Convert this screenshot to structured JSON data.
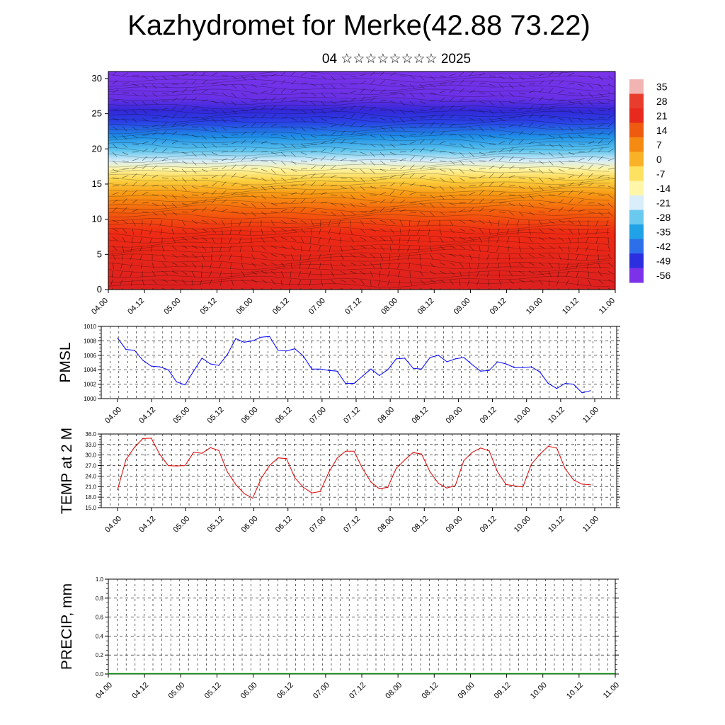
{
  "header": {
    "title": "Kazhydromet for Merke(42.88 73.22)",
    "subtitle": "04 ☆☆☆☆☆☆☆☆ 2025"
  },
  "chart_data": [
    {
      "type": "heatmap",
      "name": "temperature-height-section",
      "x_ticks": [
        "04.00",
        "04.12",
        "05.00",
        "05.12",
        "06.00",
        "06.12",
        "07.00",
        "07.12",
        "08.00",
        "08.12",
        "09.00",
        "09.12",
        "10.00",
        "10.12",
        "11.00"
      ],
      "y_ticks": [
        "0",
        "5",
        "10",
        "15",
        "20",
        "25",
        "30"
      ],
      "ylim": [
        0,
        31
      ],
      "colorbar_labels": [
        "35",
        "28",
        "21",
        "14",
        "7",
        "0",
        "-7",
        "-14",
        "-21",
        "-28",
        "-35",
        "-42",
        "-49",
        "-56"
      ],
      "colorbar_colors": [
        "#f2b3b3",
        "#e83c2c",
        "#e82a1e",
        "#ee5b10",
        "#f48a12",
        "#f9b227",
        "#fde262",
        "#fff6a8",
        "#d9eefa",
        "#6ac9ee",
        "#1fa3e6",
        "#2d6fe8",
        "#2b2fe0",
        "#7b32e8"
      ],
      "wind_barbs": true
    },
    {
      "type": "line",
      "name": "PMSL",
      "ylabel": "PMSL",
      "ylim": [
        1000,
        1010
      ],
      "y_ticks": [
        "1000",
        "1002",
        "1004",
        "1006",
        "1008",
        "1010"
      ],
      "x_ticks": [
        "04.00",
        "04.12",
        "05.00",
        "05.12",
        "06.00",
        "06.12",
        "07.00",
        "07.12",
        "08.00",
        "08.12",
        "09.00",
        "09.12",
        "10.00",
        "10.12",
        "11.00"
      ],
      "color": "#0000ff",
      "series": [
        {
          "values": [
            1008.4,
            1006.8,
            1006.7,
            1005.3,
            1004.5,
            1004.4,
            1004.0,
            1002.3,
            1001.9,
            1003.8,
            1005.6,
            1004.8,
            1004.6,
            1006.1,
            1008.3,
            1007.8,
            1008.0,
            1008.5,
            1008.6,
            1006.7,
            1006.6,
            1006.9,
            1005.9,
            1004.1,
            1004.1,
            1003.9,
            1003.8,
            1002.1,
            1002.1,
            1003.1,
            1004.1,
            1003.2,
            1004.0,
            1005.5,
            1005.6,
            1004.2,
            1004.1,
            1005.7,
            1006.0,
            1005.1,
            1005.5,
            1005.7,
            1004.7,
            1003.8,
            1003.9,
            1005.1,
            1004.8,
            1004.3,
            1004.3,
            1004.4,
            1003.7,
            1002.1,
            1001.4,
            1002.1,
            1002.0,
            1000.8,
            1001.1
          ]
        }
      ]
    },
    {
      "type": "line",
      "name": "TEMP at 2 M",
      "ylabel": "TEMP at 2 M",
      "ylim": [
        15,
        36
      ],
      "y_ticks": [
        "15.0",
        "18.0",
        "21.0",
        "24.0",
        "27.0",
        "30.0",
        "33.0",
        "36.0"
      ],
      "x_ticks": [
        "04.00",
        "04.12",
        "05.00",
        "05.12",
        "06.00",
        "06.12",
        "07.00",
        "07.12",
        "08.00",
        "08.12",
        "09.00",
        "09.12",
        "10.00",
        "10.12",
        "11.00"
      ],
      "color": "#dd0000",
      "series": [
        {
          "values": [
            20.1,
            28.7,
            32.2,
            34.7,
            34.8,
            30.2,
            27.0,
            26.9,
            27.0,
            30.8,
            30.5,
            32.1,
            31.3,
            25.2,
            21.6,
            19.0,
            17.7,
            23.3,
            27.0,
            29.2,
            29.0,
            23.5,
            20.8,
            19.2,
            19.6,
            25.0,
            29.1,
            31.1,
            31.1,
            26.2,
            22.3,
            20.4,
            20.8,
            26.2,
            28.6,
            30.7,
            30.3,
            25.2,
            21.9,
            20.6,
            21.3,
            28.4,
            30.8,
            32.0,
            31.2,
            25.2,
            21.6,
            21.2,
            20.9,
            27.4,
            30.2,
            32.5,
            32.0,
            26.1,
            22.9,
            21.7,
            21.5
          ]
        }
      ]
    },
    {
      "type": "bar",
      "name": "PRECIP",
      "ylabel": "PRECIP, mm",
      "ylim": [
        0,
        1
      ],
      "y_ticks": [
        "0.0",
        "0.2",
        "0.4",
        "0.6",
        "0.8",
        "1.0"
      ],
      "x_ticks": [
        "04.00",
        "04.12",
        "05.00",
        "05.12",
        "06.00",
        "06.12",
        "07.00",
        "07.12",
        "08.00",
        "08.12",
        "09.00",
        "09.12",
        "10.00",
        "10.12",
        "11.00"
      ],
      "color": "#008800",
      "series": [
        {
          "values": [
            0,
            0,
            0,
            0,
            0,
            0,
            0,
            0,
            0,
            0,
            0,
            0,
            0,
            0,
            0,
            0,
            0,
            0,
            0,
            0,
            0,
            0,
            0,
            0,
            0,
            0,
            0,
            0,
            0,
            0,
            0,
            0,
            0,
            0,
            0,
            0,
            0,
            0,
            0,
            0,
            0,
            0,
            0,
            0,
            0,
            0,
            0,
            0,
            0,
            0,
            0,
            0,
            0,
            0,
            0,
            0,
            0
          ]
        }
      ]
    }
  ]
}
